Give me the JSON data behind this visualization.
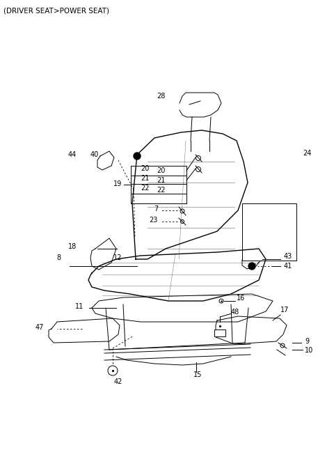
{
  "title": "(DRIVER SEAT>POWER SEAT)",
  "background_color": "#ffffff",
  "line_color": "#000000",
  "text_color": "#000000",
  "fig_width": 4.8,
  "fig_height": 6.56,
  "dpi": 100
}
